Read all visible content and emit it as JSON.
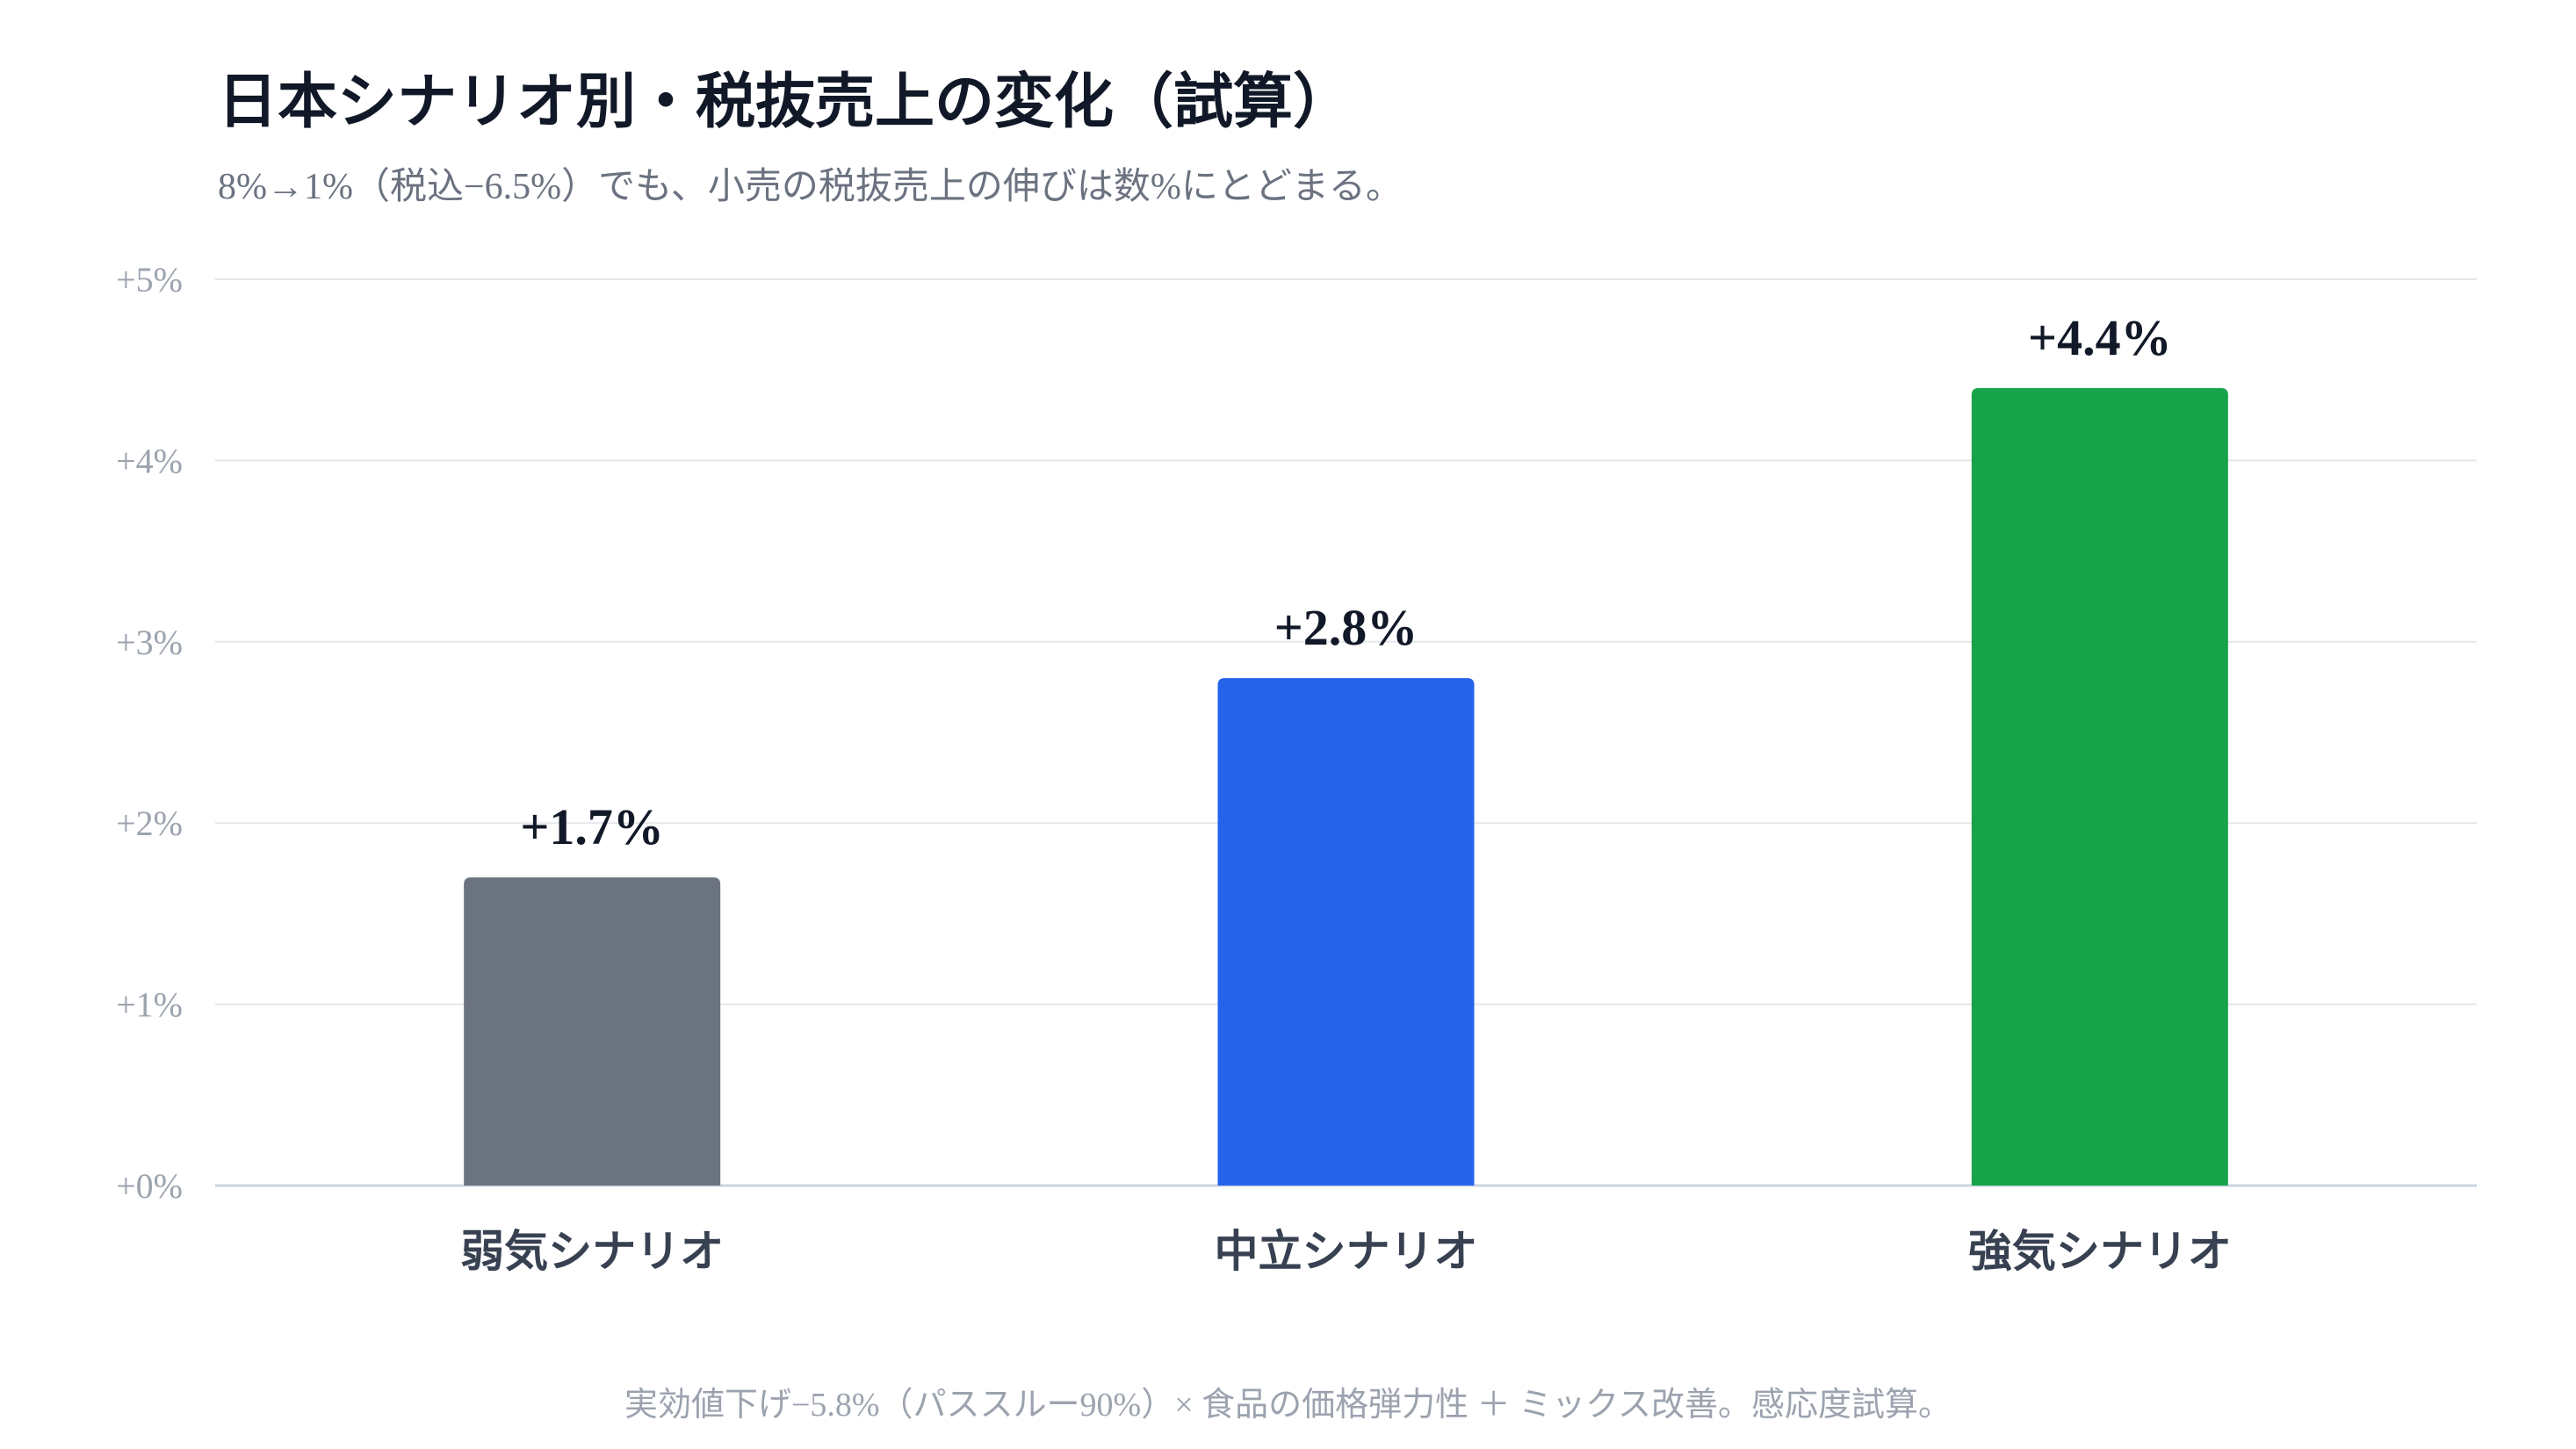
{
  "chart_data": {
    "type": "bar",
    "title": "日本シナリオ別・税抜売上の変化（試算）",
    "subtitle": "8%→1%（税込−6.5%）でも、小売の税抜売上の伸びは数%にとどまる。",
    "categories": [
      "弱気シナリオ",
      "中立シナリオ",
      "強気シナリオ"
    ],
    "values": [
      1.7,
      2.8,
      4.4
    ],
    "value_labels": [
      "+1.7%",
      "+2.8%",
      "+4.4%"
    ],
    "colors": [
      "#6b7280",
      "#2563eb",
      "#16a34a"
    ],
    "ylim": [
      0,
      5
    ],
    "yticks": [
      0,
      1,
      2,
      3,
      4,
      5
    ],
    "ytick_labels": [
      "+0%",
      "+1%",
      "+2%",
      "+3%",
      "+4%",
      "+5%"
    ],
    "xlabel": "",
    "ylabel": "",
    "grid": true,
    "footnote": "実効値下げ−5.8%（パススルー90%）× 食品の価格弾力性 ＋ ミックス改善。感応度試算。"
  }
}
